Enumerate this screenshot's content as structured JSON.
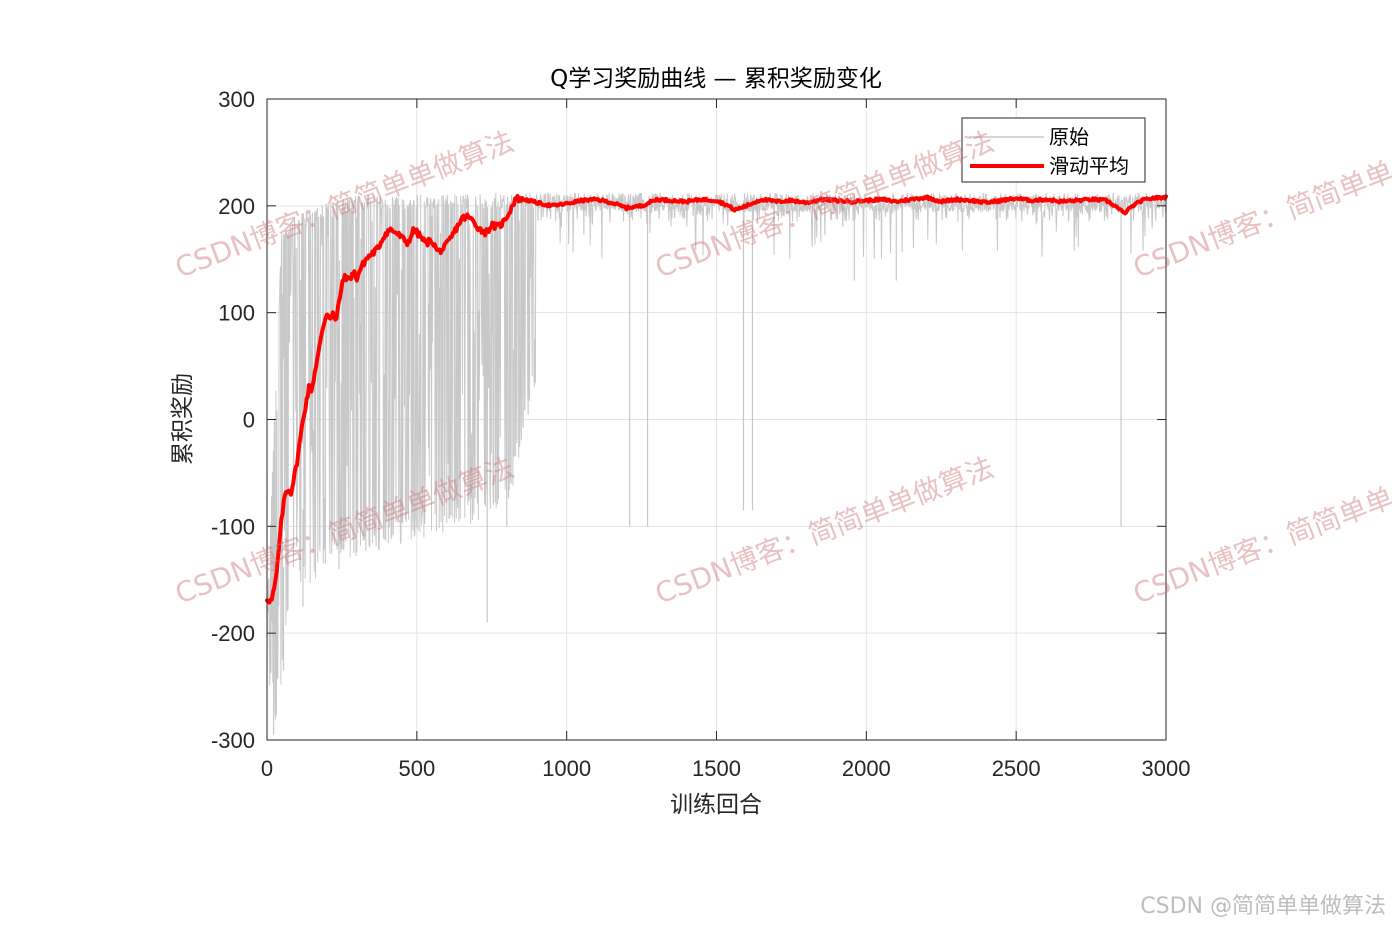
{
  "chart_data": {
    "type": "line",
    "title": "Q学习奖励曲线 — 累积奖励变化",
    "xlabel": "训练回合",
    "ylabel": "累积奖励",
    "xlim": [
      0,
      3000
    ],
    "ylim": [
      -300,
      300
    ],
    "x_ticks": [
      0,
      500,
      1000,
      1500,
      2000,
      2500,
      3000
    ],
    "y_ticks": [
      -300,
      -200,
      -100,
      0,
      100,
      200,
      300
    ],
    "x_tick_labels": [
      "0",
      "500",
      "1000",
      "1500",
      "2000",
      "2500",
      "3000"
    ],
    "y_tick_labels": [
      "-300",
      "-200",
      "-100",
      "0",
      "100",
      "200",
      "300"
    ],
    "grid": true,
    "legend_position": "top-right",
    "series": [
      {
        "name": "原始",
        "color": "#c8c8c8",
        "style": "noisy raw episode rewards",
        "upper_envelope": [
          [
            0,
            -170
          ],
          [
            50,
            180
          ],
          [
            150,
            200
          ],
          [
            300,
            210
          ],
          [
            800,
            212
          ],
          [
            3000,
            212
          ]
        ],
        "baseline": [
          [
            0,
            -160
          ],
          [
            100,
            -120
          ],
          [
            200,
            60
          ],
          [
            300,
            120
          ],
          [
            400,
            170
          ],
          [
            600,
            190
          ],
          [
            850,
            205
          ],
          [
            3000,
            205
          ]
        ],
        "lower_envelope": [
          [
            0,
            -240
          ],
          [
            30,
            -290
          ],
          [
            80,
            -170
          ],
          [
            200,
            -140
          ],
          [
            400,
            -120
          ],
          [
            800,
            -90
          ],
          [
            1000,
            170
          ],
          [
            3000,
            180
          ]
        ],
        "notable_dips": [
          [
            22,
            -295
          ],
          [
            55,
            -235
          ],
          [
            120,
            -175
          ],
          [
            240,
            -140
          ],
          [
            290,
            -125
          ],
          [
            735,
            -190
          ],
          [
            800,
            -100
          ],
          [
            1210,
            -100
          ],
          [
            1270,
            -100
          ],
          [
            1590,
            -85
          ],
          [
            1620,
            -85
          ],
          [
            2850,
            -100
          ],
          [
            1960,
            130
          ],
          [
            2100,
            130
          ]
        ]
      },
      {
        "name": "滑动平均",
        "color": "#ff0000",
        "style": "moving average",
        "points": [
          [
            0,
            -168
          ],
          [
            15,
            -170
          ],
          [
            30,
            -150
          ],
          [
            40,
            -120
          ],
          [
            50,
            -90
          ],
          [
            60,
            -70
          ],
          [
            70,
            -65
          ],
          [
            80,
            -68
          ],
          [
            90,
            -55
          ],
          [
            100,
            -40
          ],
          [
            110,
            -20
          ],
          [
            120,
            0
          ],
          [
            130,
            15
          ],
          [
            140,
            30
          ],
          [
            150,
            28
          ],
          [
            160,
            45
          ],
          [
            170,
            60
          ],
          [
            180,
            75
          ],
          [
            190,
            90
          ],
          [
            200,
            100
          ],
          [
            210,
            95
          ],
          [
            220,
            100
          ],
          [
            230,
            90
          ],
          [
            240,
            110
          ],
          [
            250,
            125
          ],
          [
            260,
            135
          ],
          [
            270,
            130
          ],
          [
            290,
            138
          ],
          [
            300,
            132
          ],
          [
            310,
            140
          ],
          [
            330,
            150
          ],
          [
            350,
            155
          ],
          [
            370,
            160
          ],
          [
            390,
            172
          ],
          [
            410,
            178
          ],
          [
            430,
            175
          ],
          [
            450,
            170
          ],
          [
            470,
            165
          ],
          [
            490,
            178
          ],
          [
            510,
            172
          ],
          [
            530,
            165
          ],
          [
            550,
            168
          ],
          [
            570,
            157
          ],
          [
            590,
            160
          ],
          [
            610,
            168
          ],
          [
            630,
            178
          ],
          [
            650,
            188
          ],
          [
            670,
            190
          ],
          [
            690,
            185
          ],
          [
            710,
            178
          ],
          [
            730,
            175
          ],
          [
            750,
            182
          ],
          [
            770,
            180
          ],
          [
            790,
            185
          ],
          [
            810,
            195
          ],
          [
            830,
            207
          ],
          [
            860,
            206
          ],
          [
            900,
            203
          ],
          [
            950,
            200
          ],
          [
            1000,
            202
          ],
          [
            1050,
            205
          ],
          [
            1100,
            206
          ],
          [
            1150,
            203
          ],
          [
            1200,
            198
          ],
          [
            1250,
            200
          ],
          [
            1300,
            206
          ],
          [
            1350,
            205
          ],
          [
            1400,
            204
          ],
          [
            1450,
            206
          ],
          [
            1500,
            205
          ],
          [
            1540,
            200
          ],
          [
            1560,
            196
          ],
          [
            1600,
            200
          ],
          [
            1650,
            206
          ],
          [
            1700,
            204
          ],
          [
            1750,
            205
          ],
          [
            1800,
            203
          ],
          [
            1850,
            206
          ],
          [
            1900,
            205
          ],
          [
            1950,
            204
          ],
          [
            2000,
            205
          ],
          [
            2050,
            206
          ],
          [
            2100,
            204
          ],
          [
            2150,
            206
          ],
          [
            2200,
            208
          ],
          [
            2250,
            204
          ],
          [
            2300,
            206
          ],
          [
            2350,
            205
          ],
          [
            2400,
            203
          ],
          [
            2450,
            205
          ],
          [
            2500,
            207
          ],
          [
            2550,
            205
          ],
          [
            2600,
            206
          ],
          [
            2650,
            204
          ],
          [
            2700,
            205
          ],
          [
            2750,
            206
          ],
          [
            2800,
            205
          ],
          [
            2830,
            200
          ],
          [
            2860,
            193
          ],
          [
            2890,
            200
          ],
          [
            2920,
            205
          ],
          [
            2950,
            207
          ],
          [
            3000,
            208
          ]
        ]
      }
    ]
  },
  "watermarks": [
    "CSDN博客：简简单单做算法"
  ],
  "credit": "CSDN @简简单单做算法"
}
